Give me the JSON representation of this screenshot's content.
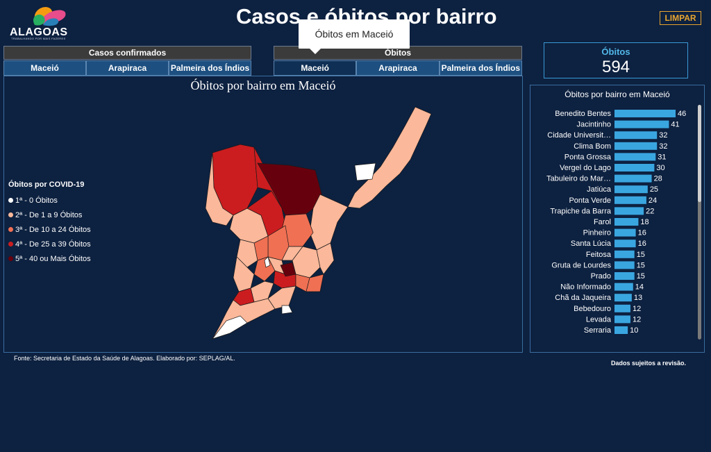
{
  "header": {
    "logo_text": "ALAGOAS",
    "logo_sub": "TRABALHANDO POR MAIS FAZERES",
    "title": "Casos e óbitos por bairro",
    "clear_button": "LIMPAR",
    "tooltip": "Óbitos em Maceió"
  },
  "sections": {
    "cases": {
      "label": "Casos confirmados",
      "tabs": [
        "Maceió",
        "Arapiraca",
        "Palmeira dos Índios"
      ]
    },
    "deaths": {
      "label": "Óbitos",
      "tabs": [
        "Maceió",
        "Arapiraca",
        "Palmeira dos Índios"
      ],
      "active_tab": 0
    }
  },
  "map": {
    "title": "Óbitos por bairro em Maceió",
    "legend_title": "Óbitos por COVID-19",
    "legend": [
      {
        "label": "1ª - 0 Óbitos",
        "color": "#ffffff"
      },
      {
        "label": "2ª - De 1 a 9 Óbitos",
        "color": "#fbb89a"
      },
      {
        "label": "3ª - De 10 a 24 Óbitos",
        "color": "#f07053"
      },
      {
        "label": "4ª - De 25 a 39 Óbitos",
        "color": "#cb1d1f"
      },
      {
        "label": "5ª - 40 ou Mais Óbitos",
        "color": "#67000d"
      }
    ]
  },
  "kpi": {
    "label": "Óbitos",
    "value": "594"
  },
  "bars": {
    "title": "Óbitos por bairro em Maceió",
    "color": "#3aa6e0",
    "items": [
      {
        "name": "Benedito Bentes",
        "value": 46
      },
      {
        "name": "Jacintinho",
        "value": 41
      },
      {
        "name": "Cidade Universit…",
        "value": 32
      },
      {
        "name": "Clima Bom",
        "value": 32
      },
      {
        "name": "Ponta Grossa",
        "value": 31
      },
      {
        "name": "Vergel do Lago",
        "value": 30
      },
      {
        "name": "Tabuleiro do Mar…",
        "value": 28
      },
      {
        "name": "Jatiúca",
        "value": 25
      },
      {
        "name": "Ponta Verde",
        "value": 24
      },
      {
        "name": "Trapiche da Barra",
        "value": 22
      },
      {
        "name": "Farol",
        "value": 18
      },
      {
        "name": "Pinheiro",
        "value": 16
      },
      {
        "name": "Santa Lúcia",
        "value": 16
      },
      {
        "name": "Feitosa",
        "value": 15
      },
      {
        "name": "Gruta de Lourdes",
        "value": 15
      },
      {
        "name": "Prado",
        "value": 15
      },
      {
        "name": "Não Informado",
        "value": 14
      },
      {
        "name": "Chã da Jaqueira",
        "value": 13
      },
      {
        "name": "Bebedouro",
        "value": 12
      },
      {
        "name": "Levada",
        "value": 12
      },
      {
        "name": "Serraria",
        "value": 10
      }
    ]
  },
  "footer": {
    "source": "Fonte: Secretaria de Estado da Saúde de Alagoas. Elaborado por: SEPLAG/AL.",
    "note": "Dados sujeitos a revisão."
  }
}
